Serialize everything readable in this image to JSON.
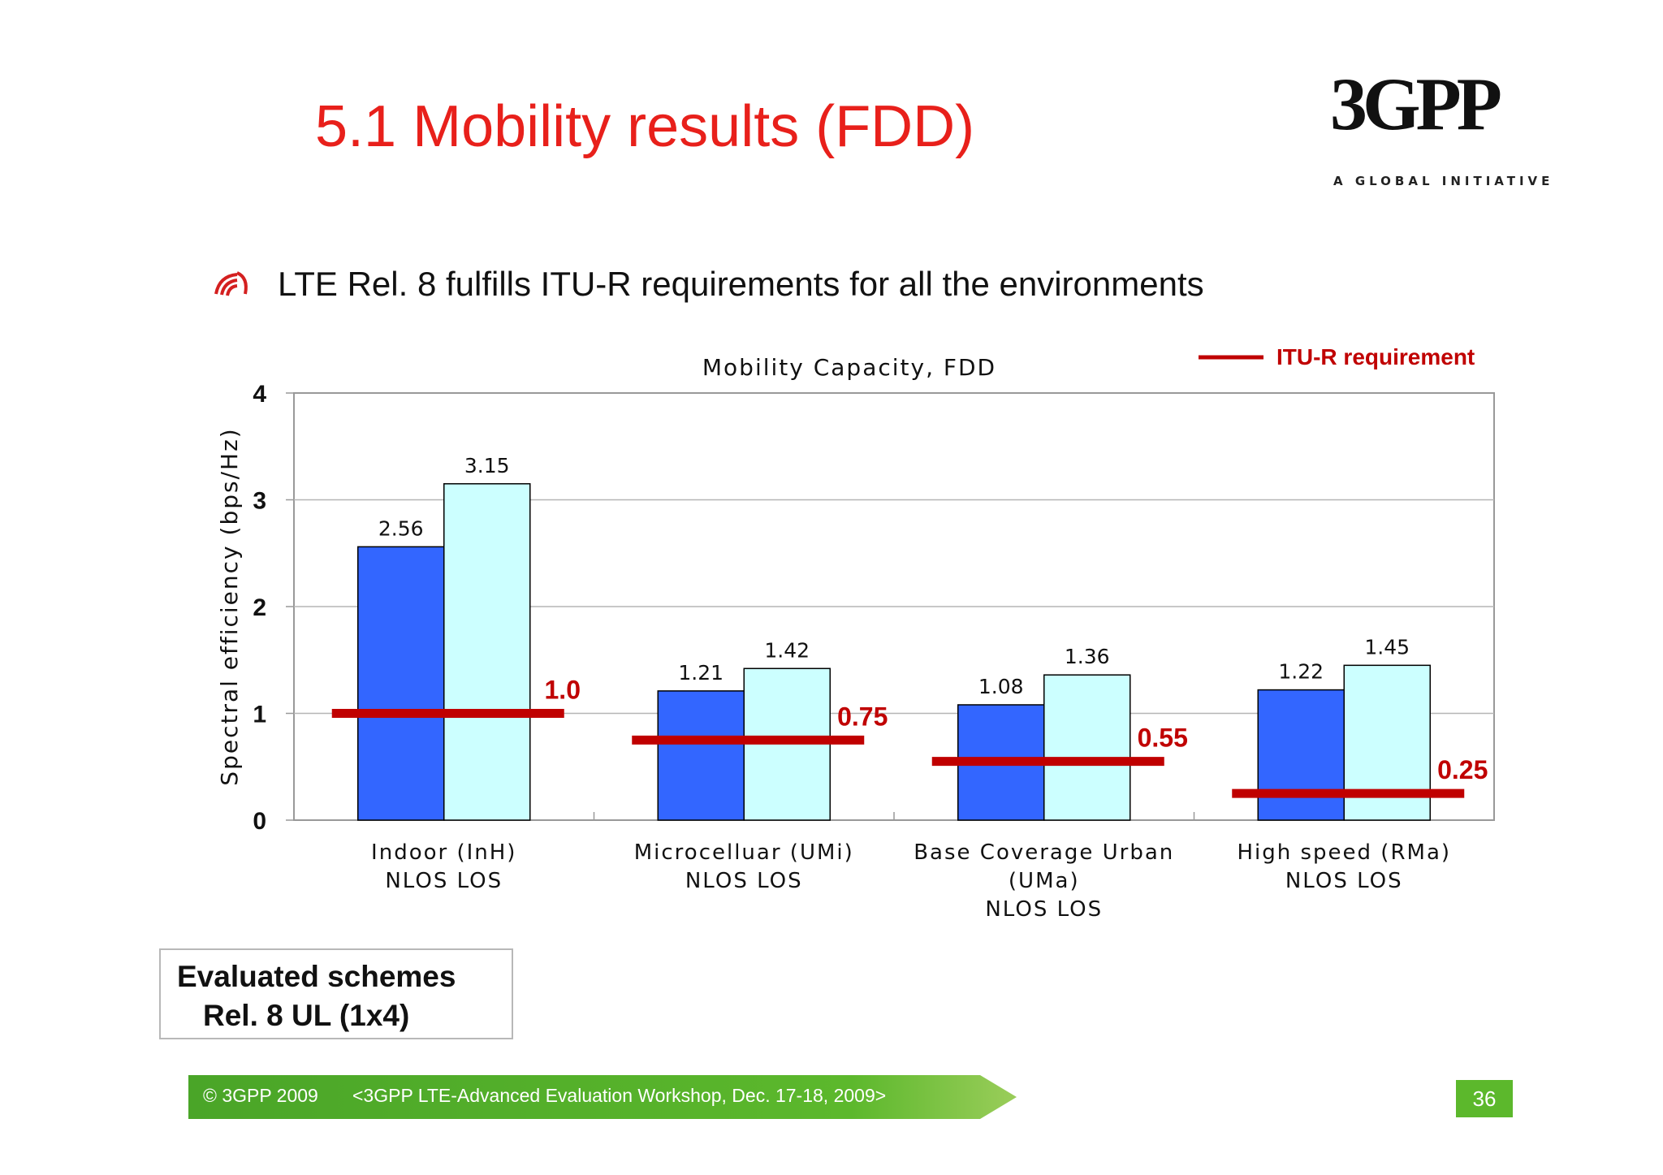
{
  "slide": {
    "title": "5.1 Mobility results (FDD)",
    "bullet": "LTE Rel. 8 fulfills ITU-R requirements for all the environments",
    "logo": {
      "mark": "3GPP",
      "tagline": "A GLOBAL INITIATIVE"
    },
    "schemes_box": {
      "title": "Evaluated schemes",
      "item": "Rel. 8 UL (1x4)"
    },
    "footer": {
      "copyright": "© 3GPP 2009",
      "event": "<3GPP LTE-Advanced Evaluation Workshop, Dec. 17-18, 2009>",
      "page_number": "36"
    },
    "colors": {
      "title": "#e8201b",
      "requirement": "#c00000",
      "footer_green": "#5cb82c"
    }
  },
  "chart_data": {
    "type": "bar",
    "title": "Mobility Capacity, FDD",
    "ylabel": "Spectral efficiency (bps/Hz)",
    "xlabel": "",
    "ylim": [
      0,
      4
    ],
    "yticks": [
      0,
      1,
      2,
      3,
      4
    ],
    "grid": true,
    "legend": {
      "position": "top-right",
      "label": "ITU-R requirement"
    },
    "categories": [
      {
        "lines": [
          "Indoor (InH)",
          "NLOS      LOS"
        ]
      },
      {
        "lines": [
          "Microcelluar (UMi)",
          "NLOS    LOS"
        ]
      },
      {
        "lines": [
          "Base Coverage Urban",
          "(UMa)",
          "NLOS    LOS"
        ]
      },
      {
        "lines": [
          "High speed (RMa)",
          "NLOS         LOS"
        ]
      }
    ],
    "series": [
      {
        "name": "NLOS",
        "color": "#3366ff",
        "values": [
          2.56,
          1.21,
          1.08,
          1.22
        ],
        "labels": [
          "2.56",
          "1.21",
          "1.08",
          "1.22"
        ]
      },
      {
        "name": "LOS",
        "color": "#ccffff",
        "values": [
          3.15,
          1.42,
          1.36,
          1.45
        ],
        "labels": [
          "3.15",
          "1.42",
          "1.36",
          "1.45"
        ]
      }
    ],
    "requirement": {
      "name": "ITU-R requirement",
      "color": "#c00000",
      "values": [
        1.0,
        0.75,
        0.55,
        0.25
      ],
      "labels": [
        "1.0",
        "0.75",
        "0.55",
        "0.25"
      ]
    }
  }
}
